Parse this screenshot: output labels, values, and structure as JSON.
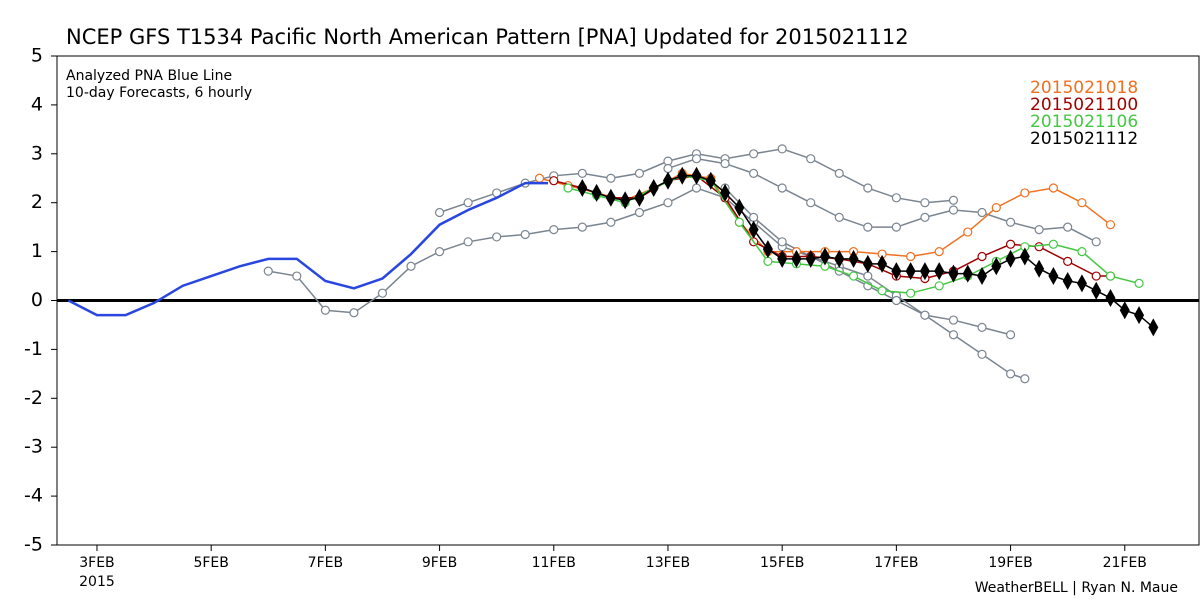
{
  "chart_data": {
    "type": "line",
    "title": "NCEP GFS T1534 Pacific North American Pattern [PNA] Updated for 2015021112",
    "subtitle": "10-day Forecasts, 6 hourly",
    "credit": "WeatherBELL | Ryan N. Maue",
    "x_sublabel": "2015",
    "xlim": [
      2.3,
      22.3
    ],
    "xticks": [
      {
        "value": 3,
        "label": "3FEB"
      },
      {
        "value": 5,
        "label": "5FEB"
      },
      {
        "value": 7,
        "label": "7FEB"
      },
      {
        "value": 9,
        "label": "9FEB"
      },
      {
        "value": 11,
        "label": "11FEB"
      },
      {
        "value": 13,
        "label": "13FEB"
      },
      {
        "value": 15,
        "label": "15FEB"
      },
      {
        "value": 17,
        "label": "17FEB"
      },
      {
        "value": 19,
        "label": "19FEB"
      },
      {
        "value": 21,
        "label": "21FEB"
      }
    ],
    "ylim": [
      -5,
      5
    ],
    "yticks": [
      -5,
      -4,
      -3,
      -2,
      -1,
      0,
      1,
      2,
      3,
      4,
      5
    ],
    "legend": "top-right",
    "analyzed": {
      "label": "Analyzed PNA Blue Line",
      "color": "#2a46e0",
      "x": [
        2.5,
        3,
        3.5,
        4,
        4.5,
        5,
        5.5,
        6,
        6.5,
        7,
        7.5,
        8,
        8.5,
        9,
        9.5,
        10,
        10.5,
        10.9
      ],
      "values": [
        0,
        -0.3,
        -0.3,
        -0.05,
        0.3,
        0.5,
        0.7,
        0.85,
        0.85,
        0.4,
        0.25,
        0.45,
        0.95,
        1.55,
        1.85,
        2.1,
        2.4,
        2.4
      ]
    },
    "ensemble": [
      {
        "color": "#7a8590",
        "x": [
          6,
          6.5,
          7,
          7.5,
          8,
          8.5,
          9,
          9.5,
          10,
          10.5,
          11,
          11.5,
          12,
          12.5,
          13,
          13.5,
          14,
          14.5,
          15,
          15.5,
          16,
          16.5,
          17,
          17.5,
          18,
          18.5,
          19,
          19.25
        ],
        "values": [
          0.6,
          0.5,
          -0.2,
          -0.25,
          0.15,
          0.7,
          1.0,
          1.2,
          1.3,
          1.35,
          1.45,
          1.5,
          1.6,
          1.8,
          2.0,
          2.3,
          2.1,
          1.6,
          1.1,
          0.9,
          0.7,
          0.5,
          0.1,
          -0.3,
          -0.7,
          -1.1,
          -1.5,
          -1.6
        ]
      },
      {
        "color": "#7a8590",
        "x": [
          9,
          9.5,
          10,
          10.5,
          11,
          11.5,
          12,
          12.5,
          13,
          13.5,
          14,
          14.5,
          15,
          15.5,
          16,
          16.5,
          17,
          17.5,
          18
        ],
        "values": [
          1.8,
          2.0,
          2.2,
          2.4,
          2.55,
          2.6,
          2.5,
          2.6,
          2.85,
          3.0,
          2.9,
          3.0,
          3.1,
          2.9,
          2.6,
          2.3,
          2.1,
          2.0,
          2.05
        ]
      },
      {
        "color": "#7a8590",
        "x": [
          13,
          13.5,
          14,
          14.5,
          15,
          15.5,
          16,
          16.5,
          17,
          17.5,
          18,
          18.5,
          19,
          19.5,
          20,
          20.5
        ],
        "values": [
          2.7,
          2.9,
          2.8,
          2.6,
          2.3,
          2.0,
          1.7,
          1.5,
          1.5,
          1.7,
          1.85,
          1.8,
          1.6,
          1.45,
          1.5,
          1.2
        ]
      },
      {
        "color": "#7a8590",
        "x": [
          14,
          14.5,
          15,
          15.5,
          16,
          16.5,
          17,
          17.5,
          18,
          18.5,
          19
        ],
        "values": [
          2.3,
          1.7,
          1.2,
          0.9,
          0.6,
          0.3,
          0,
          -0.3,
          -0.4,
          -0.55,
          -0.7
        ]
      }
    ],
    "series": [
      {
        "name": "2015021018",
        "color": "#f07020",
        "marker": "circle",
        "x": [
          10.75,
          11.25,
          11.75,
          12.25,
          12.75,
          13.25,
          13.75,
          14.25,
          14.75,
          15.25,
          15.75,
          16.25,
          16.75,
          17.25,
          17.75,
          18.25,
          18.75,
          19.25,
          19.75,
          20.25,
          20.75
        ],
        "values": [
          2.5,
          2.35,
          2.2,
          2.05,
          2.3,
          2.6,
          2.5,
          1.6,
          1.0,
          1.0,
          1.0,
          1.0,
          0.95,
          0.9,
          1.0,
          1.4,
          1.9,
          2.2,
          2.3,
          2.0,
          1.55
        ]
      },
      {
        "name": "2015021100",
        "color": "#a00000",
        "marker": "circle",
        "x": [
          11,
          11.5,
          12,
          12.5,
          13,
          13.5,
          14,
          14.5,
          15,
          15.5,
          16,
          16.5,
          17,
          17.5,
          18,
          18.5,
          19,
          19.5,
          20,
          20.5,
          20.75
        ],
        "values": [
          2.45,
          2.3,
          2.1,
          2.1,
          2.45,
          2.55,
          2.1,
          1.2,
          0.9,
          0.9,
          0.85,
          0.75,
          0.5,
          0.45,
          0.6,
          0.9,
          1.15,
          1.1,
          0.8,
          0.5,
          0.5
        ]
      },
      {
        "name": "2015021106",
        "color": "#44c844",
        "marker": "circle",
        "x": [
          11.25,
          11.75,
          12.25,
          12.75,
          13.25,
          13.75,
          14.25,
          14.75,
          15.25,
          15.75,
          16.25,
          16.75,
          17.25,
          17.75,
          18.25,
          18.75,
          19.25,
          19.75,
          20.25,
          20.75,
          21.25
        ],
        "values": [
          2.3,
          2.15,
          2.0,
          2.3,
          2.55,
          2.45,
          1.6,
          0.8,
          0.75,
          0.7,
          0.5,
          0.2,
          0.15,
          0.3,
          0.5,
          0.8,
          1.1,
          1.15,
          1.0,
          0.5,
          0.35
        ]
      },
      {
        "name": "2015021112",
        "color": "#000000",
        "marker": "diamond",
        "x": [
          11.5,
          11.75,
          12,
          12.25,
          12.5,
          12.75,
          13,
          13.25,
          13.5,
          13.75,
          14,
          14.25,
          14.5,
          14.75,
          15,
          15.25,
          15.5,
          15.75,
          16,
          16.25,
          16.5,
          16.75,
          17,
          17.25,
          17.5,
          17.75,
          18,
          18.25,
          18.5,
          18.75,
          19,
          19.25,
          19.5,
          19.75,
          20,
          20.25,
          20.5,
          20.75,
          21,
          21.25,
          21.5
        ],
        "values": [
          2.3,
          2.2,
          2.1,
          2.05,
          2.1,
          2.3,
          2.45,
          2.55,
          2.55,
          2.45,
          2.2,
          1.9,
          1.45,
          1.05,
          0.85,
          0.85,
          0.85,
          0.9,
          0.85,
          0.85,
          0.75,
          0.75,
          0.6,
          0.6,
          0.6,
          0.6,
          0.55,
          0.55,
          0.5,
          0.7,
          0.85,
          0.9,
          0.65,
          0.5,
          0.4,
          0.35,
          0.2,
          0.05,
          -0.2,
          -0.3,
          -0.55
        ]
      }
    ]
  }
}
